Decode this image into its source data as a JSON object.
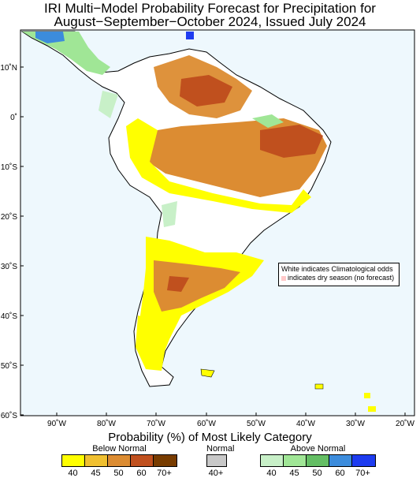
{
  "title_line1": "IRI Multi−Model Probability Forecast for Precipitation for",
  "title_line2": "August−September−October 2024, Issued July 2024",
  "lon_labels": [
    "90˚W",
    "80˚W",
    "70˚W",
    "60˚W",
    "50˚W",
    "40˚W",
    "30˚W",
    "20˚W"
  ],
  "lat_labels": [
    "10˚N",
    "0˚",
    "10˚S",
    "20˚S",
    "30˚S",
    "40˚S",
    "50˚S",
    "60˚S"
  ],
  "note_line1": "White indicates Climatological odds",
  "note_line2": "indicates dry season (no forecast)",
  "legend_title": "Probability (%) of Most Likely Category",
  "below_normal": {
    "label": "Below Normal",
    "ticks": [
      "40",
      "45",
      "50",
      "60",
      "70+"
    ],
    "colors": [
      "#ffff00",
      "#f0c030",
      "#dc8c32",
      "#c0501e",
      "#783c00"
    ]
  },
  "normal": {
    "label": "Normal",
    "ticks": [
      "40+"
    ],
    "colors": [
      "#c8c8c8"
    ]
  },
  "above_normal": {
    "label": "Above Normal",
    "ticks": [
      "40",
      "45",
      "50",
      "60",
      "70+"
    ],
    "colors": [
      "#c8f0c8",
      "#a0e696",
      "#64be64",
      "#3c8cdc",
      "#1e3cf0"
    ]
  }
}
